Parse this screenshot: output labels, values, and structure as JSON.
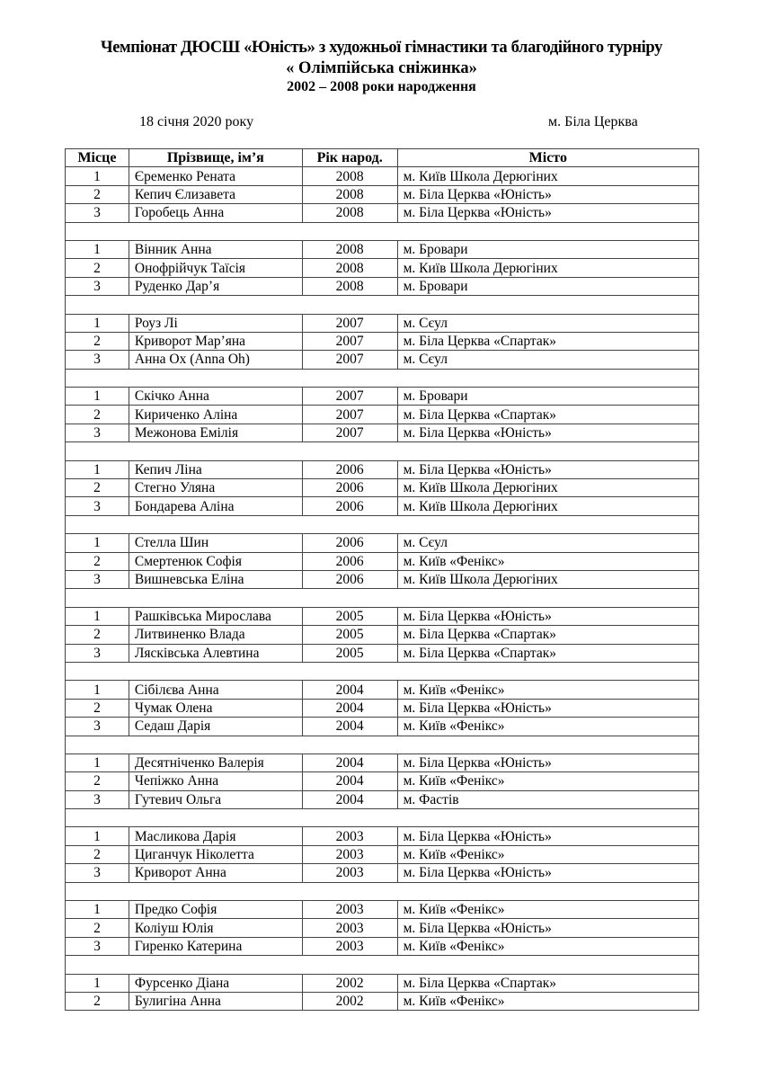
{
  "header": {
    "title_line1": "Чемпіонат ДЮСШ «Юність» з художньої гімнастики та благодійного турніру",
    "title_line2": "« Олімпійська сніжинка»",
    "title_line3": "2002 – 2008 роки народження",
    "date": "18 січня 2020 року",
    "place": "м. Біла Церква"
  },
  "table": {
    "columns": [
      "Місце",
      "Прізвище, ім’я",
      "Рік народ.",
      "Місто"
    ],
    "groups": [
      [
        [
          "1",
          "Єременко Рената",
          "2008",
          "м. Київ Школа Дерюгіних"
        ],
        [
          "2",
          "Кепич Єлизавета",
          "2008",
          "м. Біла Церква «Юність»"
        ],
        [
          "3",
          "Горобець Анна",
          "2008",
          "м. Біла Церква «Юність»"
        ]
      ],
      [
        [
          "1",
          "Вінник Анна",
          "2008",
          "м. Бровари"
        ],
        [
          "2",
          "Онофрійчук Таїсія",
          "2008",
          "м. Київ Школа Дерюгіних"
        ],
        [
          "3",
          "Руденко Дар’я",
          "2008",
          "м. Бровари"
        ]
      ],
      [
        [
          "1",
          "Роуз Лі",
          "2007",
          "м. Сєул"
        ],
        [
          "2",
          "Криворот Мар’яна",
          "2007",
          "м. Біла Церква «Спартак»"
        ],
        [
          "3",
          "Анна Ох (Anna Oh)",
          "2007",
          "м. Сєул"
        ]
      ],
      [
        [
          "1",
          "Скічко Анна",
          "2007",
          "м. Бровари"
        ],
        [
          "2",
          "Кириченко Аліна",
          "2007",
          "м. Біла Церква «Спартак»"
        ],
        [
          "3",
          "Межонова Емілія",
          "2007",
          "м. Біла Церква «Юність»"
        ]
      ],
      [
        [
          "1",
          "Кепич Ліна",
          "2006",
          "м. Біла Церква «Юність»"
        ],
        [
          "2",
          "Стегно Уляна",
          "2006",
          "м. Київ Школа Дерюгіних"
        ],
        [
          "3",
          "Бондарева Аліна",
          "2006",
          "м. Київ Школа Дерюгіних"
        ]
      ],
      [
        [
          "1",
          "Стелла Шин",
          "2006",
          "м. Сєул"
        ],
        [
          "2",
          "Смертенюк Софія",
          "2006",
          "м. Київ «Фенікс»"
        ],
        [
          "3",
          "Вишневська Еліна",
          "2006",
          "м. Київ Школа Дерюгіних"
        ]
      ],
      [
        [
          "1",
          "Рашківська Мирослава",
          "2005",
          "м. Біла Церква «Юність»"
        ],
        [
          "2",
          "Литвиненко Влада",
          "2005",
          "м. Біла Церква «Спартак»"
        ],
        [
          "3",
          "Лясківська Алевтина",
          "2005",
          "м. Біла Церква «Спартак»"
        ]
      ],
      [
        [
          "1",
          "Сібілєва Анна",
          "2004",
          "м. Київ «Фенікс»"
        ],
        [
          "2",
          "Чумак Олена",
          "2004",
          "м. Біла Церква «Юність»"
        ],
        [
          "3",
          "Седаш Дарія",
          "2004",
          "м. Київ «Фенікс»"
        ]
      ],
      [
        [
          "1",
          "Десятніченко Валерія",
          "2004",
          "м. Біла Церква «Юність»"
        ],
        [
          "2",
          "Чепіжко Анна",
          "2004",
          "м. Київ «Фенікс»"
        ],
        [
          "3",
          "Гутевич Ольга",
          "2004",
          "м. Фастів"
        ]
      ],
      [
        [
          "1",
          "Масликова Дарія",
          "2003",
          "м. Біла Церква «Юність»"
        ],
        [
          "2",
          "Циганчук Ніколетта",
          "2003",
          "м. Київ «Фенікс»"
        ],
        [
          "3",
          "Криворот Анна",
          "2003",
          "м. Біла Церква «Юність»"
        ]
      ],
      [
        [
          "1",
          "Предко Софія",
          "2003",
          "м. Київ «Фенікс»"
        ],
        [
          "2",
          "Коліуш Юлія",
          "2003",
          "м. Біла Церква «Юність»"
        ],
        [
          "3",
          "Гиренко Катерина",
          "2003",
          "м. Київ «Фенікс»"
        ]
      ],
      [
        [
          "1",
          "Фурсенко Діана",
          "2002",
          "м. Біла Церква «Спартак»"
        ],
        [
          "2",
          "Булигіна Анна",
          "2002",
          "м. Київ «Фенікс»"
        ]
      ]
    ]
  }
}
